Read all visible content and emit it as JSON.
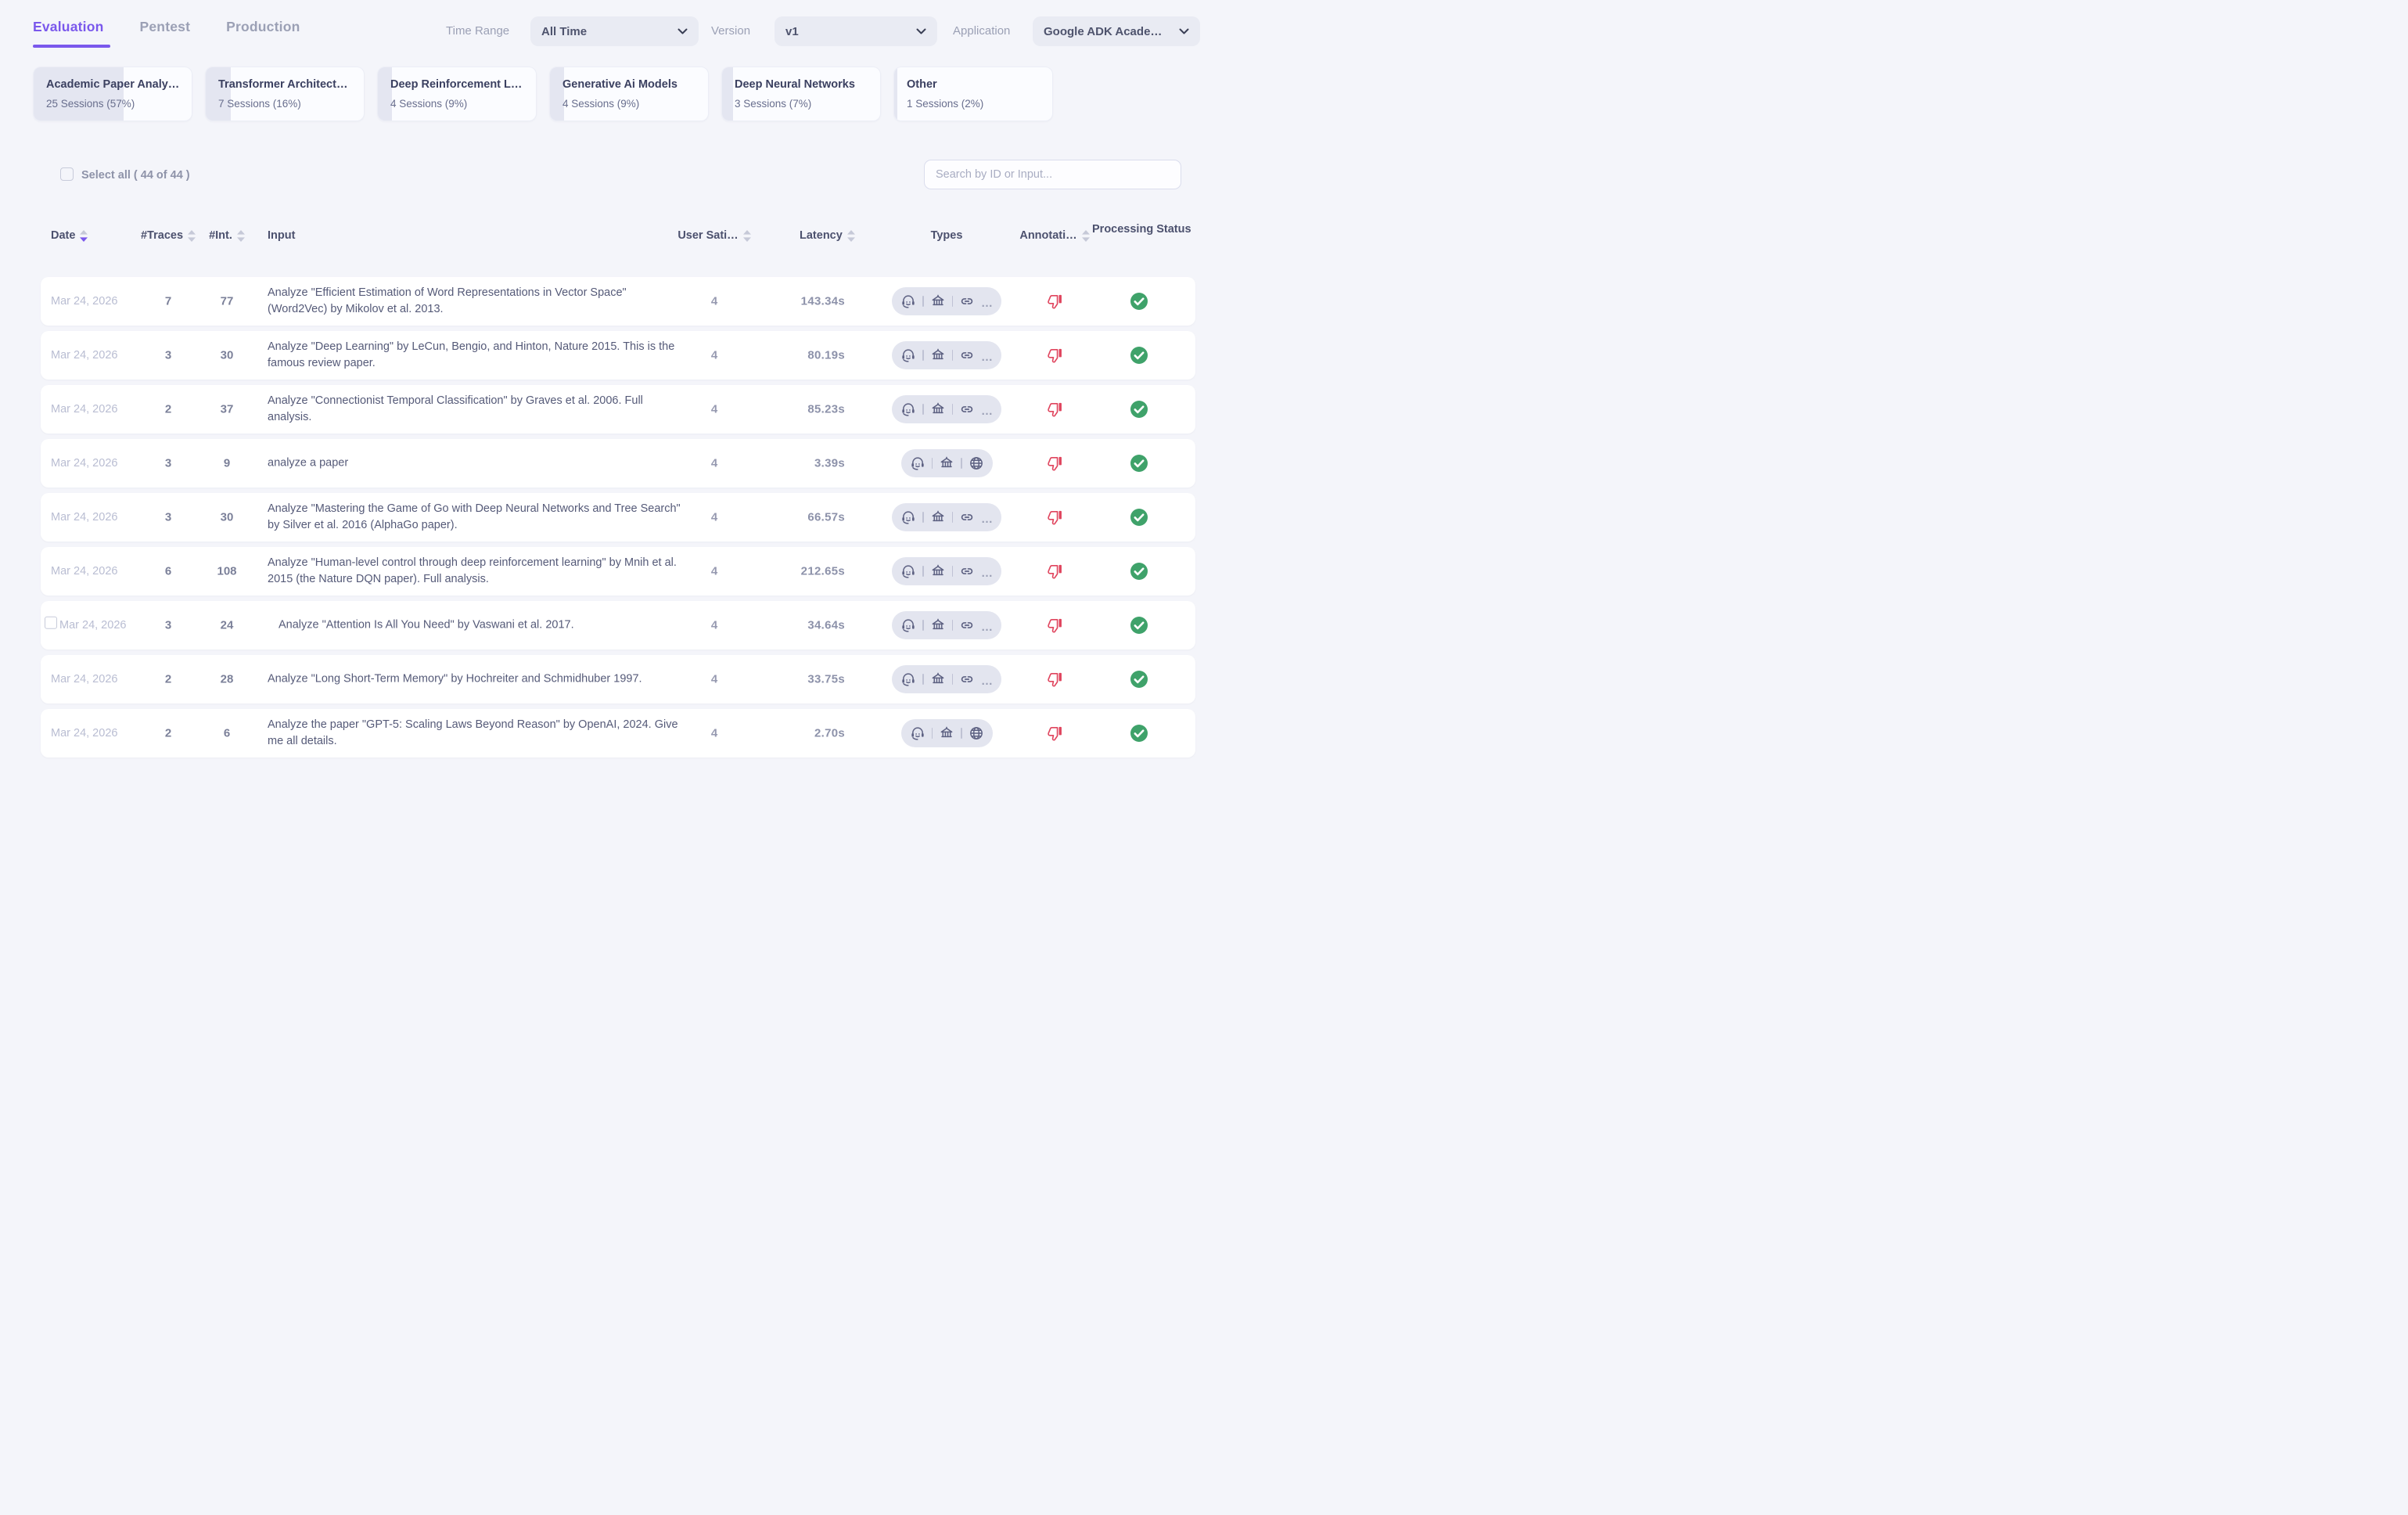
{
  "tabs": [
    {
      "label": "Evaluation",
      "active": true
    },
    {
      "label": "Pentest",
      "active": false
    },
    {
      "label": "Production",
      "active": false
    }
  ],
  "filters": {
    "time_range_label": "Time Range",
    "time_range_value": "All Time",
    "version_label": "Version",
    "version_value": "v1",
    "application_label": "Application",
    "application_value": "Google ADK Academic…"
  },
  "categories": [
    {
      "title": "Academic Paper Analy…",
      "subtitle": "25 Sessions (57%)",
      "pct": 57
    },
    {
      "title": "Transformer Architect…",
      "subtitle": "7 Sessions (16%)",
      "pct": 16
    },
    {
      "title": "Deep Reinforcement L…",
      "subtitle": "4 Sessions (9%)",
      "pct": 9
    },
    {
      "title": "Generative Ai Models",
      "subtitle": "4 Sessions (9%)",
      "pct": 9
    },
    {
      "title": "Deep Neural Networks",
      "subtitle": "3 Sessions (7%)",
      "pct": 7
    },
    {
      "title": "Other",
      "subtitle": "1 Sessions (2%)",
      "pct": 2
    }
  ],
  "select_all_label": "Select all ( 44 of 44 )",
  "search": {
    "placeholder": "Search by ID or Input..."
  },
  "table": {
    "headers": {
      "date": "Date",
      "traces": "#Traces",
      "interactions": "#Int.",
      "input": "Input",
      "user_satisfaction": "User Sati…",
      "latency": "Latency",
      "types": "Types",
      "annotation": "Annotati…",
      "status": "Processing Status"
    },
    "sort_state": {
      "date": "desc"
    },
    "rows": [
      {
        "date": "Mar 24, 2026",
        "traces": "7",
        "interactions": "77",
        "input": "Analyze \"Efficient Estimation of Word Representations in Vector Space\" (Word2Vec) by Mikolov et al. 2013.",
        "user_satisfaction": "4",
        "latency": "143.34s",
        "types": [
          "agent",
          "bank",
          "link",
          "more"
        ],
        "annotation": "thumbs-down",
        "status": "success",
        "checkbox": false
      },
      {
        "date": "Mar 24, 2026",
        "traces": "3",
        "interactions": "30",
        "input": "Analyze \"Deep Learning\" by LeCun, Bengio, and Hinton, Nature 2015. This is the famous review paper.",
        "user_satisfaction": "4",
        "latency": "80.19s",
        "types": [
          "agent",
          "bank",
          "link",
          "more"
        ],
        "annotation": "thumbs-down",
        "status": "success",
        "checkbox": false
      },
      {
        "date": "Mar 24, 2026",
        "traces": "2",
        "interactions": "37",
        "input": "Analyze \"Connectionist Temporal Classification\" by Graves et al. 2006. Full analysis.",
        "user_satisfaction": "4",
        "latency": "85.23s",
        "types": [
          "agent",
          "bank",
          "link",
          "more"
        ],
        "annotation": "thumbs-down",
        "status": "success",
        "checkbox": false
      },
      {
        "date": "Mar 24, 2026",
        "traces": "3",
        "interactions": "9",
        "input": "analyze a paper",
        "user_satisfaction": "4",
        "latency": "3.39s",
        "types": [
          "agent",
          "bank",
          "globe"
        ],
        "annotation": "thumbs-down",
        "status": "success",
        "checkbox": false
      },
      {
        "date": "Mar 24, 2026",
        "traces": "3",
        "interactions": "30",
        "input": "Analyze \"Mastering the Game of Go with Deep Neural Networks and Tree Search\" by Silver et al. 2016 (AlphaGo paper).",
        "user_satisfaction": "4",
        "latency": "66.57s",
        "types": [
          "agent",
          "bank",
          "link",
          "more"
        ],
        "annotation": "thumbs-down",
        "status": "success",
        "checkbox": false
      },
      {
        "date": "Mar 24, 2026",
        "traces": "6",
        "interactions": "108",
        "input": "Analyze \"Human-level control through deep reinforcement learning\" by Mnih et al. 2015 (the Nature DQN paper). Full analysis.",
        "user_satisfaction": "4",
        "latency": "212.65s",
        "types": [
          "agent",
          "bank",
          "link",
          "more"
        ],
        "annotation": "thumbs-down",
        "status": "success",
        "checkbox": false
      },
      {
        "date": "Mar 24, 2026",
        "traces": "3",
        "interactions": "24",
        "input": "Analyze \"Attention Is All You Need\" by Vaswani et al. 2017.",
        "user_satisfaction": "4",
        "latency": "34.64s",
        "types": [
          "agent",
          "bank",
          "link",
          "more"
        ],
        "annotation": "thumbs-down",
        "status": "success",
        "checkbox": true
      },
      {
        "date": "Mar 24, 2026",
        "traces": "2",
        "interactions": "28",
        "input": "Analyze \"Long Short-Term Memory\" by Hochreiter and Schmidhuber 1997.",
        "user_satisfaction": "4",
        "latency": "33.75s",
        "types": [
          "agent",
          "bank",
          "link",
          "more"
        ],
        "annotation": "thumbs-down",
        "status": "success",
        "checkbox": false
      },
      {
        "date": "Mar 24, 2026",
        "traces": "2",
        "interactions": "6",
        "input": "Analyze the paper \"GPT-5: Scaling Laws Beyond Reason\" by OpenAI, 2024. Give me all details.",
        "user_satisfaction": "4",
        "latency": "2.70s",
        "types": [
          "agent",
          "bank",
          "globe"
        ],
        "annotation": "thumbs-down",
        "status": "success",
        "checkbox": false
      }
    ]
  },
  "colors": {
    "accent": "#7a58ec",
    "thumbs_down": "#e0455e",
    "success": "#3fa26a",
    "icon": "#5d6182"
  }
}
